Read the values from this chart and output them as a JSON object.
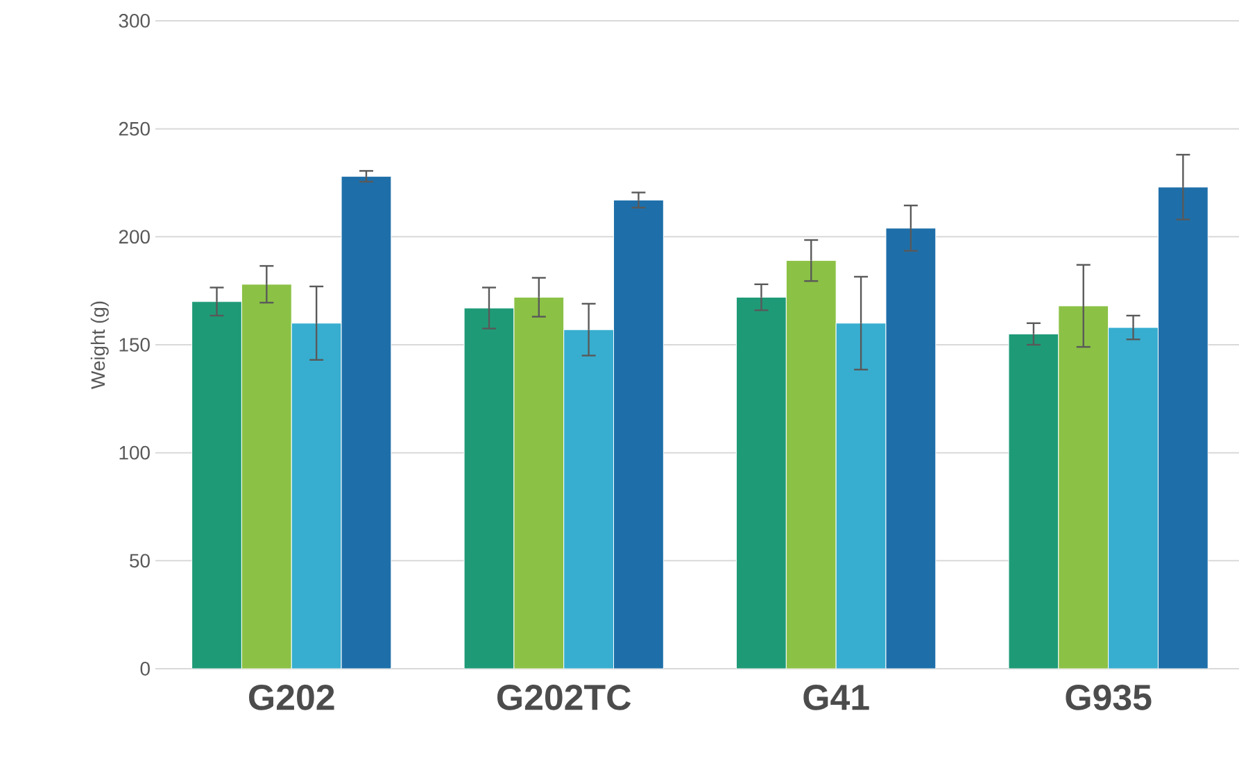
{
  "chart_data": {
    "type": "bar",
    "ylabel": "Weight (g)",
    "categories": [
      "G202",
      "G202TC",
      "G41",
      "G935"
    ],
    "series": [
      {
        "color": "#1f9a77",
        "values": [
          170,
          167,
          172,
          155
        ],
        "errors": [
          6.5,
          9.5,
          6,
          5
        ]
      },
      {
        "color": "#8bc145",
        "values": [
          178,
          172,
          189,
          168
        ],
        "errors": [
          8.5,
          9,
          9.5,
          19
        ]
      },
      {
        "color": "#37aecf",
        "values": [
          160,
          157,
          160,
          158
        ],
        "errors": [
          17,
          12,
          21.5,
          5.5
        ]
      },
      {
        "color": "#1e6fa9",
        "values": [
          228,
          217,
          204,
          223
        ],
        "errors": [
          2.5,
          3.5,
          10.5,
          15
        ]
      }
    ],
    "ylim": [
      0,
      300
    ],
    "yticks": [
      0,
      50,
      100,
      150,
      200,
      250,
      300
    ],
    "grid": "y"
  }
}
